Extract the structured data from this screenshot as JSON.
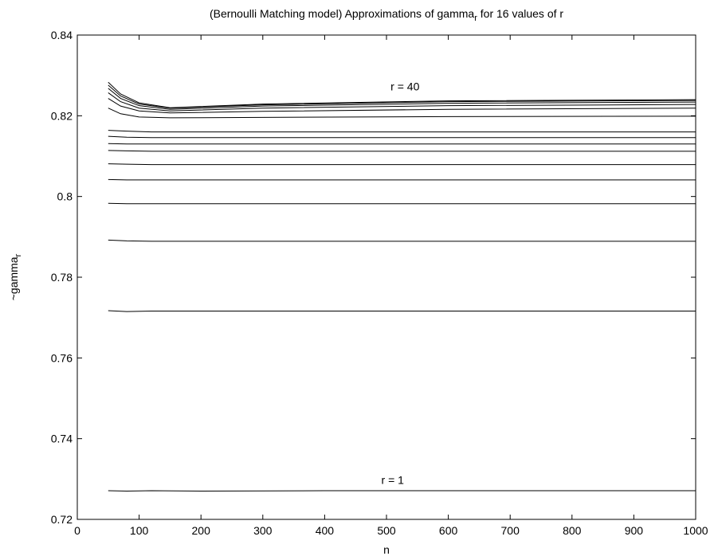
{
  "chart_data": {
    "type": "line",
    "title": "(Bernoulli Matching model) Approximations of gamma",
    "title_subscript": "r",
    "title_suffix": " for 16 values of r",
    "xlabel": "n",
    "ylabel": "~gamma",
    "ylabel_subscript": "r",
    "xlim": [
      0,
      1000
    ],
    "ylim": [
      0.72,
      0.84
    ],
    "xticks": [
      0,
      100,
      200,
      300,
      400,
      500,
      600,
      700,
      800,
      900,
      1000
    ],
    "xtick_labels": [
      "0",
      "100",
      "200",
      "300",
      "400",
      "500",
      "600",
      "700",
      "800",
      "900",
      "1000"
    ],
    "yticks": [
      0.72,
      0.74,
      0.76,
      0.78,
      0.8,
      0.82,
      0.84
    ],
    "ytick_labels": [
      "0.72",
      "0.74",
      "0.76",
      "0.78",
      "0.8",
      "0.82",
      "0.84"
    ],
    "grid": false,
    "line_color": "#000000",
    "annotations": [
      {
        "text": "r = 40",
        "x": 530,
        "y": 0.8263
      },
      {
        "text": "r = 1",
        "x": 510,
        "y": 0.7288
      }
    ],
    "series": [
      {
        "x": [
          50,
          80,
          120,
          200,
          400,
          700,
          1000
        ],
        "y": [
          0.7271,
          0.727,
          0.7271,
          0.727,
          0.7271,
          0.7271,
          0.7271
        ]
      },
      {
        "x": [
          50,
          80,
          120,
          200,
          400,
          700,
          1000
        ],
        "y": [
          0.7717,
          0.7715,
          0.7716,
          0.7716,
          0.7716,
          0.7716,
          0.7716
        ]
      },
      {
        "x": [
          50,
          80,
          120,
          200,
          400,
          700,
          1000
        ],
        "y": [
          0.7892,
          0.789,
          0.7889,
          0.7889,
          0.7889,
          0.7889,
          0.7889
        ]
      },
      {
        "x": [
          50,
          80,
          120,
          200,
          400,
          700,
          1000
        ],
        "y": [
          0.7983,
          0.7982,
          0.7982,
          0.7982,
          0.7982,
          0.7982,
          0.7982
        ]
      },
      {
        "x": [
          50,
          80,
          120,
          200,
          400,
          700,
          1000
        ],
        "y": [
          0.8042,
          0.8041,
          0.8041,
          0.8041,
          0.8041,
          0.8041,
          0.8041
        ]
      },
      {
        "x": [
          50,
          80,
          120,
          200,
          400,
          700,
          1000
        ],
        "y": [
          0.8081,
          0.808,
          0.8079,
          0.8079,
          0.8079,
          0.8079,
          0.8079
        ]
      },
      {
        "x": [
          50,
          80,
          120,
          200,
          400,
          700,
          1000
        ],
        "y": [
          0.8114,
          0.8113,
          0.8112,
          0.8112,
          0.8112,
          0.8112,
          0.8112
        ]
      },
      {
        "x": [
          50,
          80,
          120,
          200,
          400,
          700,
          1000
        ],
        "y": [
          0.8131,
          0.813,
          0.813,
          0.813,
          0.813,
          0.813,
          0.813
        ]
      },
      {
        "x": [
          50,
          80,
          120,
          200,
          400,
          700,
          1000
        ],
        "y": [
          0.8149,
          0.8147,
          0.8146,
          0.8146,
          0.8146,
          0.8146,
          0.8146
        ]
      },
      {
        "x": [
          50,
          80,
          120,
          200,
          400,
          700,
          1000
        ],
        "y": [
          0.8164,
          0.8162,
          0.816,
          0.816,
          0.816,
          0.816,
          0.816
        ]
      },
      {
        "x": [
          50,
          70,
          100,
          150,
          300,
          600,
          1000
        ],
        "y": [
          0.8219,
          0.8205,
          0.8197,
          0.8195,
          0.8196,
          0.8198,
          0.8199
        ]
      },
      {
        "x": [
          50,
          70,
          100,
          150,
          300,
          600,
          1000
        ],
        "y": [
          0.8243,
          0.8224,
          0.8212,
          0.8207,
          0.8211,
          0.8216,
          0.8219
        ]
      },
      {
        "x": [
          50,
          70,
          100,
          150,
          300,
          600,
          1000
        ],
        "y": [
          0.8257,
          0.8235,
          0.8219,
          0.8212,
          0.8219,
          0.8225,
          0.8228
        ]
      },
      {
        "x": [
          50,
          70,
          100,
          150,
          300,
          600,
          1000
        ],
        "y": [
          0.8268,
          0.8243,
          0.8225,
          0.8216,
          0.8224,
          0.8231,
          0.8234
        ]
      },
      {
        "x": [
          50,
          70,
          100,
          150,
          300,
          600,
          1000
        ],
        "y": [
          0.8276,
          0.8249,
          0.8229,
          0.8219,
          0.8227,
          0.8235,
          0.8238
        ]
      },
      {
        "x": [
          50,
          70,
          100,
          150,
          300,
          600,
          1000
        ],
        "y": [
          0.8283,
          0.8254,
          0.8232,
          0.822,
          0.8229,
          0.8237,
          0.824
        ]
      }
    ]
  }
}
